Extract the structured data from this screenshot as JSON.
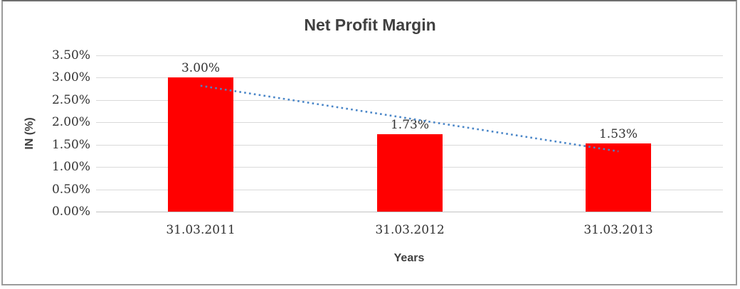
{
  "chart_data": {
    "type": "bar",
    "title": "Net Profit Margin",
    "categories": [
      "31.03.2011",
      "31.03.2012",
      "31.03.2013"
    ],
    "values": [
      3.0,
      1.73,
      1.53
    ],
    "data_labels": [
      "3.00%",
      "1.73%",
      "1.53%"
    ],
    "xlabel": "Years",
    "ylabel": "IN (%)",
    "ylim": [
      0,
      3.5
    ],
    "ytick_step": 0.5,
    "ytick_labels": [
      "0.00%",
      "0.50%",
      "1.00%",
      "1.50%",
      "2.00%",
      "2.50%",
      "3.00%",
      "3.50%"
    ],
    "grid": true,
    "legend": "none",
    "bar_color": "#ff0000",
    "gridline_color": "#d9d9d9",
    "trendline": {
      "type": "linear",
      "style": "dotted",
      "color": "#4a86c8",
      "start_value": 2.82,
      "end_value": 1.35
    }
  }
}
